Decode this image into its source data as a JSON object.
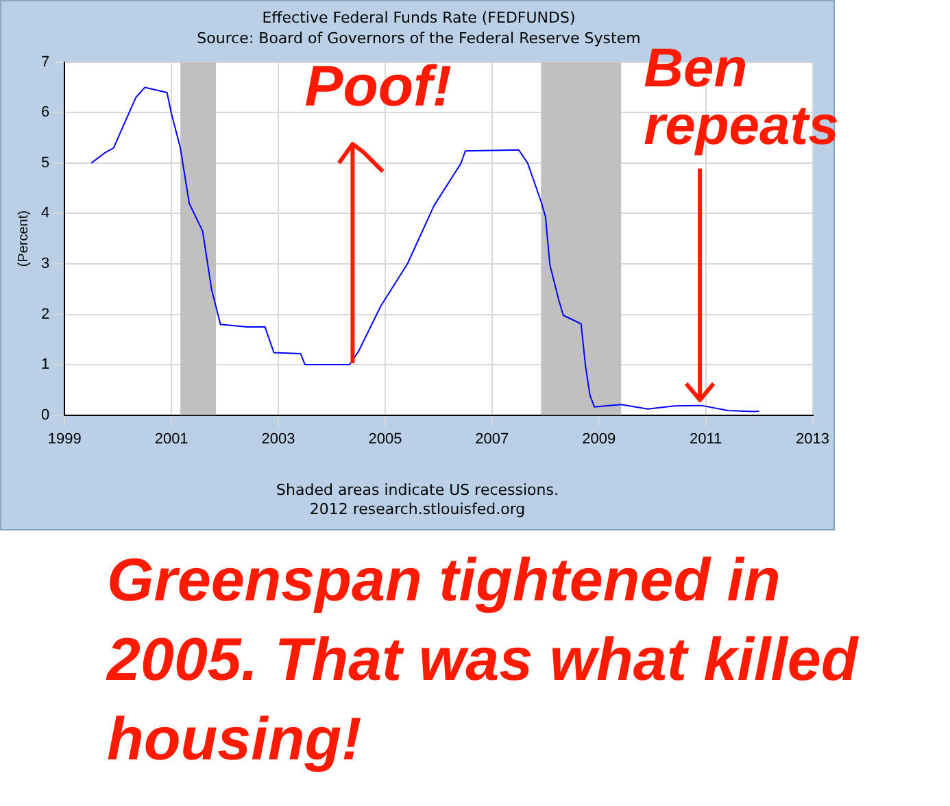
{
  "chart_data": {
    "type": "line",
    "title": "Effective Federal Funds Rate (FEDFUNDS)",
    "subtitle": "Source: Board of Governors of the Federal Reserve System",
    "ylabel": "(Percent)",
    "x": [
      "1999-07",
      "1999-10",
      "1999-12",
      "2000-02",
      "2000-05",
      "2000-07",
      "2000-12",
      "2001-01",
      "2001-03",
      "2001-05",
      "2001-08",
      "2001-10",
      "2001-12",
      "2002-06",
      "2002-10",
      "2002-12",
      "2003-06",
      "2003-07",
      "2004-05",
      "2004-07",
      "2004-12",
      "2005-06",
      "2005-12",
      "2006-06",
      "2006-07",
      "2007-07",
      "2007-09",
      "2007-12",
      "2008-01",
      "2008-02",
      "2008-04",
      "2008-05",
      "2008-09",
      "2008-10",
      "2008-11",
      "2008-12",
      "2009-06",
      "2009-12",
      "2010-06",
      "2010-12",
      "2011-06",
      "2011-12",
      "2012-01"
    ],
    "series": [
      {
        "color": "#0000ff",
        "values": [
          5.0,
          5.2,
          5.3,
          5.7,
          6.3,
          6.5,
          6.4,
          5.98,
          5.3,
          4.2,
          3.65,
          2.5,
          1.8,
          1.75,
          1.75,
          1.24,
          1.22,
          1.0,
          1.0,
          1.26,
          2.16,
          3.0,
          4.16,
          4.99,
          5.24,
          5.26,
          5.0,
          4.24,
          3.94,
          2.98,
          2.28,
          1.98,
          1.81,
          0.97,
          0.39,
          0.16,
          0.21,
          0.12,
          0.18,
          0.19,
          0.09,
          0.07,
          0.08
        ]
      }
    ],
    "xlim": [
      "1999",
      "2013"
    ],
    "xticks": [
      "1999",
      "2001",
      "2003",
      "2005",
      "2007",
      "2009",
      "2011",
      "2013"
    ],
    "ylim": [
      0,
      7
    ],
    "yticks": [
      0,
      1,
      2,
      3,
      4,
      5,
      6,
      7
    ],
    "grid": true,
    "legend": false,
    "bands": [
      {
        "axis": "x",
        "from": "2001-03",
        "to": "2001-11",
        "color": "#c0c0c0"
      },
      {
        "axis": "x",
        "from": "2007-12",
        "to": "2009-06",
        "color": "#c0c0c0"
      }
    ],
    "annotations": [
      "Shaded areas indicate US recessions.",
      "2012 research.stlouisfed.org",
      {
        "text": "Poof!",
        "x": "2004-06",
        "y": 1.0
      },
      {
        "text": "Ben repeats",
        "x": "2010-12",
        "y": 0.19
      },
      "Greenspan tightened in 2005. That was what killed housing!"
    ]
  }
}
